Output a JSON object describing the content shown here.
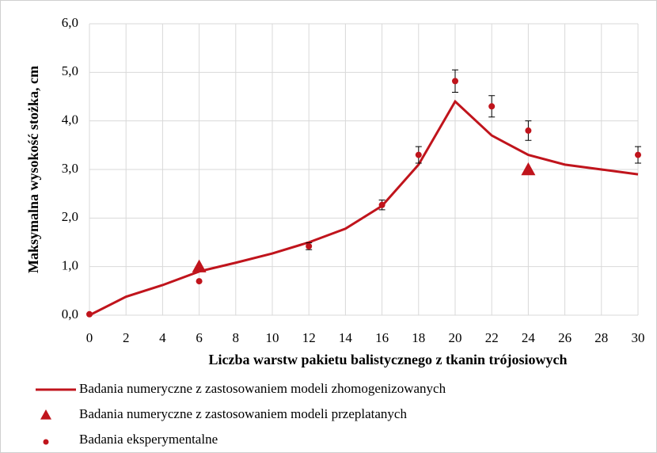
{
  "chart_data": {
    "type": "line",
    "x_label": "Liczba warstw pakietu balistycznego z tkanin trójosiowych",
    "y_label": "Maksymalna  wysokość stożka, cm",
    "xlim": [
      0,
      30
    ],
    "xticks": [
      0,
      2,
      4,
      6,
      8,
      10,
      12,
      14,
      16,
      18,
      20,
      22,
      24,
      26,
      28,
      30
    ],
    "ylim": [
      0,
      6
    ],
    "yticks": [
      {
        "value": 0,
        "label": "0,0"
      },
      {
        "value": 1,
        "label": "1,0"
      },
      {
        "value": 2,
        "label": "2,0"
      },
      {
        "value": 3,
        "label": "3,0"
      },
      {
        "value": 4,
        "label": "4,0"
      },
      {
        "value": 5,
        "label": "5,0"
      },
      {
        "value": 6,
        "label": "6,0"
      }
    ],
    "grid": true,
    "legend": "bottom",
    "series": [
      {
        "name": "Badania numeryczne z zastosowaniem modeli zhomogenizowanych",
        "kind": "line",
        "color": "#c0141c",
        "x": [
          0,
          2,
          4,
          6,
          8,
          10,
          12,
          14,
          16,
          18,
          20,
          22,
          24,
          26,
          28,
          30
        ],
        "values": [
          0,
          0.38,
          0.62,
          0.9,
          1.08,
          1.27,
          1.5,
          1.78,
          2.25,
          3.1,
          4.4,
          3.7,
          3.3,
          3.1,
          3.0,
          2.9
        ]
      },
      {
        "name": "Badania numeryczne z zastosowaniem modeli przeplatanych",
        "kind": "triangle",
        "color": "#c0141c",
        "x": [
          6,
          24
        ],
        "values": [
          1.0,
          3.0
        ]
      },
      {
        "name": "Badania eksperymentalne",
        "kind": "dot",
        "color": "#c0141c",
        "x": [
          0,
          6,
          12,
          16,
          18,
          20,
          22,
          24,
          30
        ],
        "values": [
          0.02,
          0.7,
          1.42,
          2.27,
          3.3,
          4.82,
          4.3,
          3.8,
          3.3
        ],
        "errors": [
          null,
          null,
          0.07,
          0.1,
          0.17,
          0.23,
          0.22,
          0.2,
          0.17
        ]
      }
    ]
  }
}
